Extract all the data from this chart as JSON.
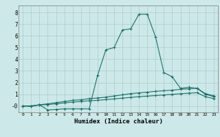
{
  "xlabel": "Humidex (Indice chaleur)",
  "background_color": "#cce8e8",
  "grid_color": "#aacccc",
  "line_color": "#1a6e6a",
  "xlim": [
    -0.5,
    23.5
  ],
  "ylim": [
    -0.55,
    8.6
  ],
  "xticks": [
    0,
    1,
    2,
    3,
    4,
    5,
    6,
    7,
    8,
    9,
    10,
    11,
    12,
    13,
    14,
    15,
    16,
    17,
    18,
    19,
    20,
    21,
    22,
    23
  ],
  "yticks": [
    0,
    1,
    2,
    3,
    4,
    5,
    6,
    7,
    8
  ],
  "ytick_labels": [
    "-0",
    "1",
    "2",
    "3",
    "4",
    "5",
    "6",
    "7",
    "8"
  ],
  "s1_x": [
    0,
    1,
    2,
    3,
    4,
    5,
    6,
    7,
    8,
    9,
    10,
    11,
    12,
    13,
    14,
    15,
    16,
    17,
    18,
    19,
    20,
    21,
    22,
    23
  ],
  "s1_y": [
    0.0,
    -0.05,
    0.1,
    -0.35,
    -0.3,
    -0.25,
    -0.25,
    -0.25,
    -0.25,
    2.6,
    4.8,
    5.0,
    6.5,
    6.6,
    7.85,
    7.85,
    5.9,
    2.85,
    2.5,
    1.5,
    1.6,
    1.5,
    1.0,
    0.8
  ],
  "s2_x": [
    0,
    1,
    2,
    3,
    4,
    5,
    6,
    7,
    8,
    9,
    10,
    11,
    12,
    13,
    14,
    15,
    16,
    17,
    18,
    19,
    20,
    21,
    22,
    23
  ],
  "s2_y": [
    0.0,
    0.0,
    0.1,
    0.18,
    0.28,
    0.38,
    0.48,
    0.53,
    0.62,
    0.68,
    0.75,
    0.85,
    0.95,
    1.05,
    1.12,
    1.18,
    1.25,
    1.3,
    1.35,
    1.42,
    1.47,
    1.52,
    1.05,
    0.88
  ],
  "s3_x": [
    0,
    1,
    2,
    3,
    4,
    5,
    6,
    7,
    8,
    9,
    10,
    11,
    12,
    13,
    14,
    15,
    16,
    17,
    18,
    19,
    20,
    21,
    22,
    23
  ],
  "s3_y": [
    0.0,
    0.0,
    0.08,
    0.12,
    0.18,
    0.26,
    0.33,
    0.38,
    0.44,
    0.48,
    0.54,
    0.6,
    0.67,
    0.73,
    0.79,
    0.84,
    0.89,
    0.94,
    0.99,
    1.04,
    1.09,
    1.13,
    0.79,
    0.63
  ]
}
